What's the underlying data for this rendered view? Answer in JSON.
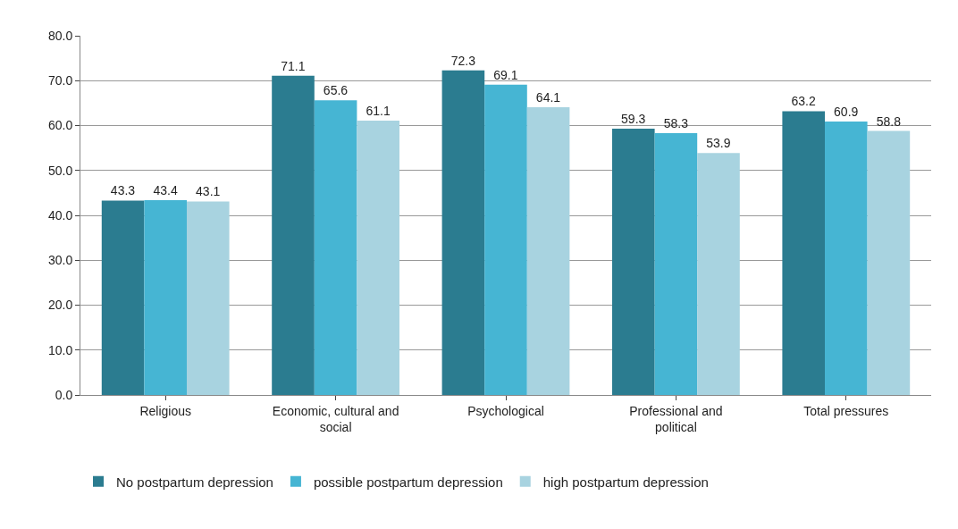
{
  "chart_data": {
    "type": "bar",
    "categories": [
      "Religious",
      "Economic, cultural and social",
      "Psychological",
      "Professional and political",
      "Total pressures"
    ],
    "series": [
      {
        "name": "No postpartum depression",
        "color": "#2b7c90",
        "values": [
          43.3,
          71.1,
          72.3,
          59.3,
          63.2
        ]
      },
      {
        "name": "possible postpartum depression",
        "color": "#46b5d3",
        "values": [
          43.4,
          65.6,
          69.1,
          58.3,
          60.9
        ]
      },
      {
        "name": "high postpartum depression",
        "color": "#a8d3e0",
        "values": [
          43.1,
          61.1,
          64.1,
          53.9,
          58.8
        ]
      }
    ],
    "ylim": [
      0,
      80
    ],
    "yticks": [
      {
        "value": 0,
        "label": "0.0"
      },
      {
        "value": 10,
        "label": "10.0"
      },
      {
        "value": 20,
        "label": "20.0"
      },
      {
        "value": 30,
        "label": "30.0"
      },
      {
        "value": 40,
        "label": "40.0"
      },
      {
        "value": 50,
        "label": "50.0"
      },
      {
        "value": 60,
        "label": "60.0"
      },
      {
        "value": 70,
        "label": "70.0"
      },
      {
        "value": 80,
        "label": "80.0"
      }
    ],
    "grid": "y",
    "legend": "bottom",
    "data_labels": true
  }
}
